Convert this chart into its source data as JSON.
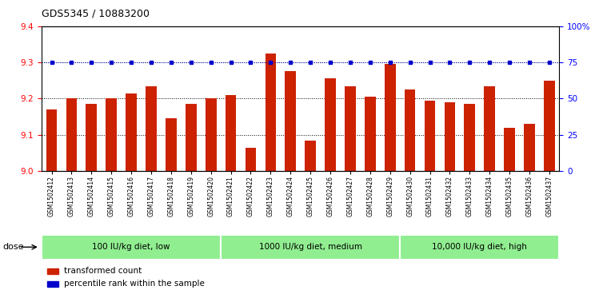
{
  "title": "GDS5345 / 10883200",
  "samples": [
    "GSM1502412",
    "GSM1502413",
    "GSM1502414",
    "GSM1502415",
    "GSM1502416",
    "GSM1502417",
    "GSM1502418",
    "GSM1502419",
    "GSM1502420",
    "GSM1502421",
    "GSM1502422",
    "GSM1502423",
    "GSM1502424",
    "GSM1502425",
    "GSM1502426",
    "GSM1502427",
    "GSM1502428",
    "GSM1502429",
    "GSM1502430",
    "GSM1502431",
    "GSM1502432",
    "GSM1502433",
    "GSM1502434",
    "GSM1502435",
    "GSM1502436",
    "GSM1502437"
  ],
  "bar_values": [
    9.17,
    9.2,
    9.185,
    9.2,
    9.215,
    9.235,
    9.145,
    9.185,
    9.2,
    9.21,
    9.065,
    9.325,
    9.275,
    9.085,
    9.255,
    9.235,
    9.205,
    9.295,
    9.225,
    9.195,
    9.19,
    9.185,
    9.235,
    9.12,
    9.13,
    9.25
  ],
  "percentile_values": [
    75,
    75,
    75,
    75,
    75,
    75,
    75,
    75,
    75,
    75,
    75,
    75,
    75,
    75,
    75,
    75,
    75,
    75,
    75,
    75,
    75,
    75,
    75,
    75,
    75,
    75
  ],
  "bar_color": "#cc2200",
  "percentile_color": "#0000cc",
  "ylim_left": [
    9.0,
    9.4
  ],
  "ylim_right": [
    0,
    100
  ],
  "yticks_left": [
    9.0,
    9.1,
    9.2,
    9.3,
    9.4
  ],
  "yticks_right": [
    0,
    25,
    50,
    75,
    100
  ],
  "ytick_labels_right": [
    "0",
    "25",
    "50",
    "75",
    "100%"
  ],
  "groups": [
    {
      "label": "100 IU/kg diet, low",
      "start": 0,
      "end": 8
    },
    {
      "label": "1000 IU/kg diet, medium",
      "start": 9,
      "end": 17
    },
    {
      "label": "10,000 IU/kg diet, high",
      "start": 18,
      "end": 25
    }
  ],
  "dose_label": "dose",
  "legend_items": [
    {
      "color": "#cc2200",
      "label": "transformed count"
    },
    {
      "color": "#0000cc",
      "label": "percentile rank within the sample"
    }
  ],
  "grid_color": "#000000",
  "bg_color": "#ffffff",
  "plot_bg_color": "#ffffff",
  "group_bg_color": "#90ee90",
  "ymin": 9.0
}
